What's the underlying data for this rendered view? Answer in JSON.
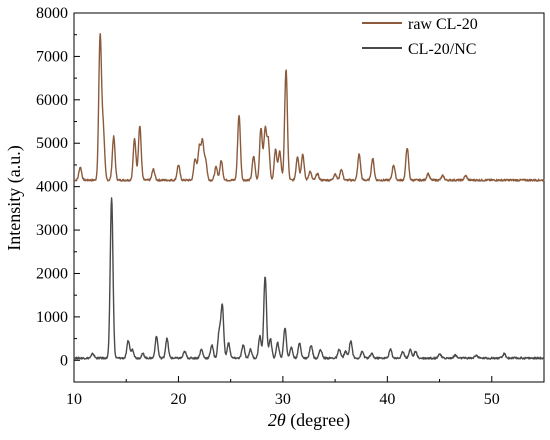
{
  "chart_data": {
    "type": "line",
    "title": "",
    "xlabel_italic": "2θ",
    "xlabel_rest": " (degree)",
    "ylabel": "Intensity (a.u.)",
    "xlim": [
      10,
      55
    ],
    "ylim": [
      -500,
      8000
    ],
    "xticks": [
      10,
      20,
      30,
      40,
      50
    ],
    "yticks": [
      0,
      1000,
      2000,
      3000,
      4000,
      5000,
      6000,
      7000,
      8000
    ],
    "grid": false,
    "legend_position": "top-right",
    "series": [
      {
        "name": "raw CL-20",
        "color": "#8b5a3c",
        "baseline": 4150,
        "peaks": [
          [
            10.6,
            4450
          ],
          [
            12.5,
            7450
          ],
          [
            12.8,
            5300
          ],
          [
            13.8,
            5150
          ],
          [
            15.8,
            5100
          ],
          [
            16.3,
            5400
          ],
          [
            17.6,
            4400
          ],
          [
            20.0,
            4500
          ],
          [
            21.6,
            4650
          ],
          [
            22.0,
            4900
          ],
          [
            22.3,
            5000
          ],
          [
            22.6,
            4600
          ],
          [
            23.6,
            4450
          ],
          [
            24.1,
            4600
          ],
          [
            25.8,
            5650
          ],
          [
            27.2,
            4700
          ],
          [
            27.9,
            5350
          ],
          [
            28.3,
            5300
          ],
          [
            28.6,
            5050
          ],
          [
            29.3,
            4850
          ],
          [
            29.7,
            4800
          ],
          [
            30.3,
            6700
          ],
          [
            31.4,
            4700
          ],
          [
            31.9,
            4750
          ],
          [
            32.6,
            4350
          ],
          [
            33.3,
            4300
          ],
          [
            35.0,
            4300
          ],
          [
            35.6,
            4400
          ],
          [
            37.3,
            4750
          ],
          [
            38.6,
            4650
          ],
          [
            40.6,
            4500
          ],
          [
            41.9,
            4900
          ],
          [
            43.9,
            4300
          ],
          [
            45.3,
            4250
          ],
          [
            47.5,
            4250
          ]
        ]
      },
      {
        "name": "CL-20/NC",
        "color": "#4a4a4a",
        "baseline": 50,
        "peaks": [
          [
            11.8,
            150
          ],
          [
            13.6,
            3750
          ],
          [
            15.2,
            450
          ],
          [
            15.6,
            250
          ],
          [
            16.6,
            150
          ],
          [
            17.9,
            550
          ],
          [
            18.9,
            500
          ],
          [
            20.6,
            200
          ],
          [
            22.2,
            250
          ],
          [
            23.2,
            350
          ],
          [
            23.9,
            650
          ],
          [
            24.2,
            1250
          ],
          [
            24.8,
            400
          ],
          [
            26.2,
            350
          ],
          [
            26.9,
            250
          ],
          [
            27.8,
            550
          ],
          [
            28.3,
            1950
          ],
          [
            28.8,
            500
          ],
          [
            29.5,
            400
          ],
          [
            30.2,
            750
          ],
          [
            30.8,
            300
          ],
          [
            31.6,
            400
          ],
          [
            32.7,
            350
          ],
          [
            33.6,
            250
          ],
          [
            35.4,
            250
          ],
          [
            36.0,
            200
          ],
          [
            36.5,
            450
          ],
          [
            37.6,
            200
          ],
          [
            38.5,
            150
          ],
          [
            40.3,
            250
          ],
          [
            41.5,
            200
          ],
          [
            42.2,
            250
          ],
          [
            42.7,
            200
          ],
          [
            45.0,
            150
          ],
          [
            46.5,
            120
          ],
          [
            48.5,
            120
          ],
          [
            51.2,
            150
          ]
        ]
      }
    ]
  }
}
